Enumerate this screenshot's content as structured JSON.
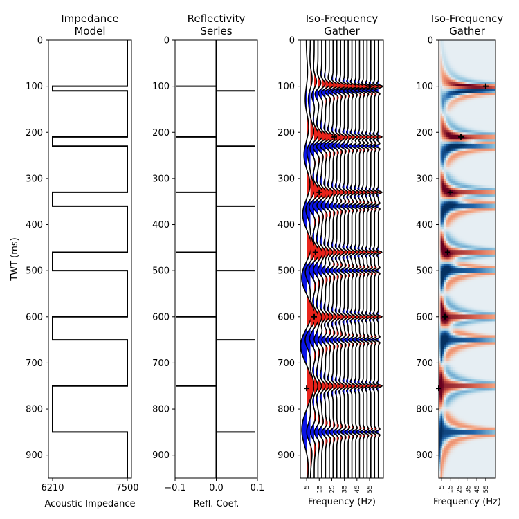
{
  "chart_data": [
    {
      "type": "line",
      "title": "Impedance\nModel",
      "xlabel": "Acoustic Impedance",
      "ylabel": "TWT (ms)",
      "xlim": [
        6210,
        7500
      ],
      "ylim": [
        950,
        0
      ],
      "xticks": [
        6210,
        7500
      ],
      "yticks": [
        0,
        100,
        200,
        300,
        400,
        500,
        600,
        700,
        800,
        900
      ],
      "high_value": 7500,
      "low_value": 6210,
      "low_layers": [
        [
          100,
          110
        ],
        [
          210,
          230
        ],
        [
          330,
          360
        ],
        [
          460,
          500
        ],
        [
          600,
          650
        ],
        [
          750,
          850
        ]
      ],
      "line_color": "#000000"
    },
    {
      "type": "line",
      "title": "Reflectivity\nSeries",
      "xlabel": "Refl. Coef.",
      "ylabel": "",
      "xlim": [
        -0.1,
        0.1
      ],
      "ylim": [
        950,
        0
      ],
      "xticks": [
        -0.1,
        0.0,
        0.1
      ],
      "xticklabels": [
        "−0.1",
        "0.0",
        "0.1"
      ],
      "yticks": [
        0,
        100,
        200,
        300,
        400,
        500,
        600,
        700,
        800,
        900
      ],
      "spikes": [
        {
          "t": 100,
          "r": -0.1
        },
        {
          "t": 110,
          "r": 0.1
        },
        {
          "t": 210,
          "r": -0.1
        },
        {
          "t": 230,
          "r": 0.1
        },
        {
          "t": 330,
          "r": -0.1
        },
        {
          "t": 360,
          "r": 0.1
        },
        {
          "t": 460,
          "r": -0.1
        },
        {
          "t": 500,
          "r": 0.1
        },
        {
          "t": 600,
          "r": -0.1
        },
        {
          "t": 650,
          "r": 0.1
        },
        {
          "t": 750,
          "r": -0.1
        },
        {
          "t": 850,
          "r": 0.1
        }
      ]
    },
    {
      "type": "line",
      "title": "Iso-Frequency\nGather",
      "xlabel": "Frequency (Hz)",
      "ylabel": "",
      "xlim": [
        0,
        66
      ],
      "ylim": [
        950,
        0
      ],
      "xticks": [
        5,
        15,
        25,
        35,
        45,
        55
      ],
      "yticks": [
        0,
        100,
        200,
        300,
        400,
        500,
        600,
        700,
        800,
        900
      ],
      "frequencies": [
        5,
        8,
        11,
        14,
        17,
        20,
        23,
        26,
        29,
        32,
        35,
        38,
        41,
        44,
        47,
        50,
        53,
        56,
        59,
        62
      ],
      "positive_fill": "#e8231a",
      "negative_fill": "#0a14e6",
      "peak_markers": [
        {
          "t": 100,
          "f": 55
        },
        {
          "t": 210,
          "f": 27
        },
        {
          "t": 330,
          "f": 15
        },
        {
          "t": 460,
          "f": 12
        },
        {
          "t": 600,
          "f": 11
        },
        {
          "t": 755,
          "f": 5
        }
      ]
    },
    {
      "type": "heatmap",
      "title": "Iso-Frequency\nGather",
      "xlabel": "Frequency (Hz)",
      "ylabel": "",
      "xlim": [
        2,
        66
      ],
      "ylim": [
        950,
        0
      ],
      "xticks": [
        5,
        15,
        25,
        35,
        45,
        55
      ],
      "yticks": [
        0,
        100,
        200,
        300,
        400,
        500,
        600,
        700,
        800,
        900
      ],
      "colormap": "RdBu_r",
      "peak_markers": [
        {
          "t": 100,
          "f": 55
        },
        {
          "t": 210,
          "f": 27
        },
        {
          "t": 330,
          "f": 15
        },
        {
          "t": 460,
          "f": 12
        },
        {
          "t": 600,
          "f": 9
        },
        {
          "t": 755,
          "f": 2
        }
      ]
    }
  ]
}
